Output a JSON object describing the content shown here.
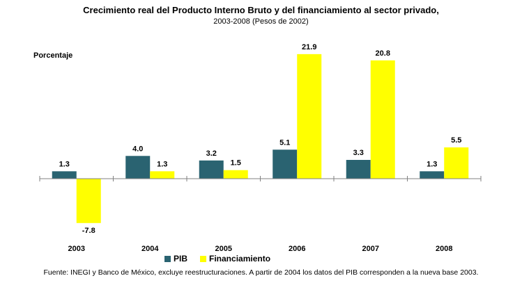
{
  "chart_data": {
    "type": "bar",
    "title": "Crecimiento real del Producto Interno Bruto y del financiamiento al sector privado,",
    "subtitle": "2003-2008  (Pesos de 2002)",
    "ylabel": "Porcentaje",
    "categories": [
      "2003",
      "2004",
      "2005",
      "2006",
      "2007",
      "2008"
    ],
    "series": [
      {
        "name": "PIB",
        "color": "#2a6371",
        "values": [
          1.3,
          4.0,
          3.2,
          5.1,
          3.3,
          1.3
        ],
        "labels": [
          "1.3",
          "4.0",
          "3.2",
          "5.1",
          "3.3",
          "1.3"
        ]
      },
      {
        "name": "Financiamiento",
        "color": "#ffff00",
        "values": [
          -7.8,
          1.3,
          1.5,
          21.9,
          20.8,
          5.5
        ],
        "labels": [
          "-7.8",
          "1.3",
          "1.5",
          "21.9",
          "20.8",
          "5.5"
        ]
      }
    ],
    "ylim": [
      -9,
      24
    ],
    "grid": false,
    "legend_position": "bottom",
    "source": "Fuente: INEGI  y Banco de México, excluye reestructuraciones.  A partir de 2004 los datos del PIB corresponden a la nueva base 2003."
  }
}
